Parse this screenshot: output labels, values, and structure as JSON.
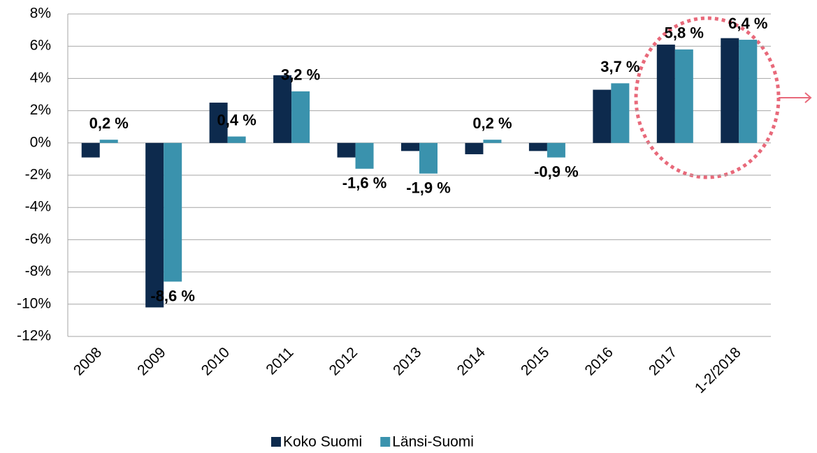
{
  "chart_data": {
    "type": "bar",
    "categories": [
      "2008",
      "2009",
      "2010",
      "2011",
      "2012",
      "2013",
      "2014",
      "2015",
      "2016",
      "2017",
      "1-2/2018"
    ],
    "series": [
      {
        "name": "Koko Suomi",
        "color": "#0d2a4d",
        "values": [
          -0.9,
          -10.2,
          2.5,
          4.2,
          -0.9,
          -0.5,
          -0.7,
          -0.5,
          3.3,
          6.1,
          6.5
        ]
      },
      {
        "name": "Länsi-Suomi",
        "color": "#3a92ad",
        "values": [
          0.2,
          -8.6,
          0.4,
          3.2,
          -1.6,
          -1.9,
          0.2,
          -0.9,
          3.7,
          5.8,
          6.4
        ],
        "value_labels": [
          "0,2 %",
          "-8,6 %",
          "0,4 %",
          "3,2 %",
          "-1,6 %",
          "-1,9 %",
          "0,2 %",
          "-0,9 %",
          "3,7 %",
          "5,8 %",
          "6,4 %"
        ]
      }
    ],
    "ylim": [
      -12,
      8
    ],
    "yticks": [
      {
        "value": -12,
        "label": "-12%"
      },
      {
        "value": -10,
        "label": "-10%"
      },
      {
        "value": -8,
        "label": "-8%"
      },
      {
        "value": -6,
        "label": "-6%"
      },
      {
        "value": -4,
        "label": "-4%"
      },
      {
        "value": -2,
        "label": "-2%"
      },
      {
        "value": 0,
        "label": "0%"
      },
      {
        "value": 2,
        "label": "2%"
      },
      {
        "value": 4,
        "label": "4%"
      },
      {
        "value": 6,
        "label": "6%"
      },
      {
        "value": 8,
        "label": "8%"
      }
    ],
    "grid": true,
    "legend": "bottom"
  }
}
